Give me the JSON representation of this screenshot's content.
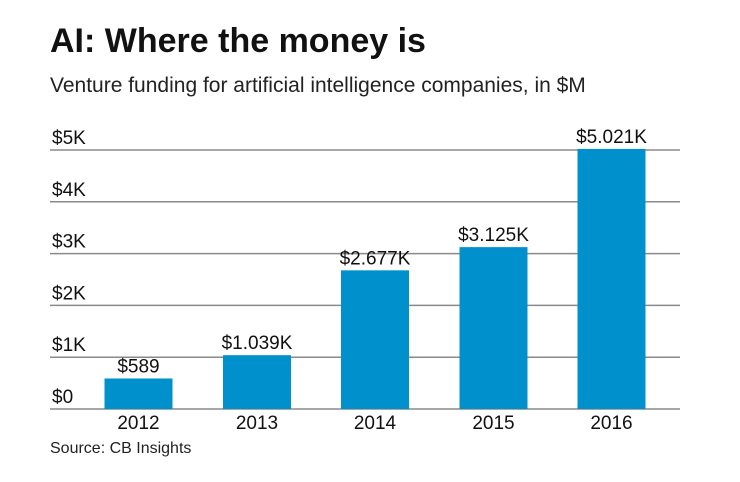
{
  "chart_data": {
    "type": "bar",
    "title": "AI: Where the money is",
    "subtitle": "Venture funding for artificial intelligence companies, in $M",
    "source": "Source: CB Insights",
    "categories": [
      "2012",
      "2013",
      "2014",
      "2015",
      "2016"
    ],
    "values": [
      589,
      1039,
      2677,
      3125,
      5021
    ],
    "data_labels": [
      "$589",
      "$1.039K",
      "$2.677K",
      "$3.125K",
      "$5.021K"
    ],
    "y_ticks": [
      0,
      1000,
      2000,
      3000,
      4000,
      5000
    ],
    "y_tick_labels": [
      "$0",
      "$1K",
      "$2K",
      "$3K",
      "$4K",
      "$5K"
    ],
    "ylim": [
      0,
      5000
    ],
    "grid": true,
    "bar_color": "#0091cd",
    "grid_color": "#8a8a8a"
  }
}
